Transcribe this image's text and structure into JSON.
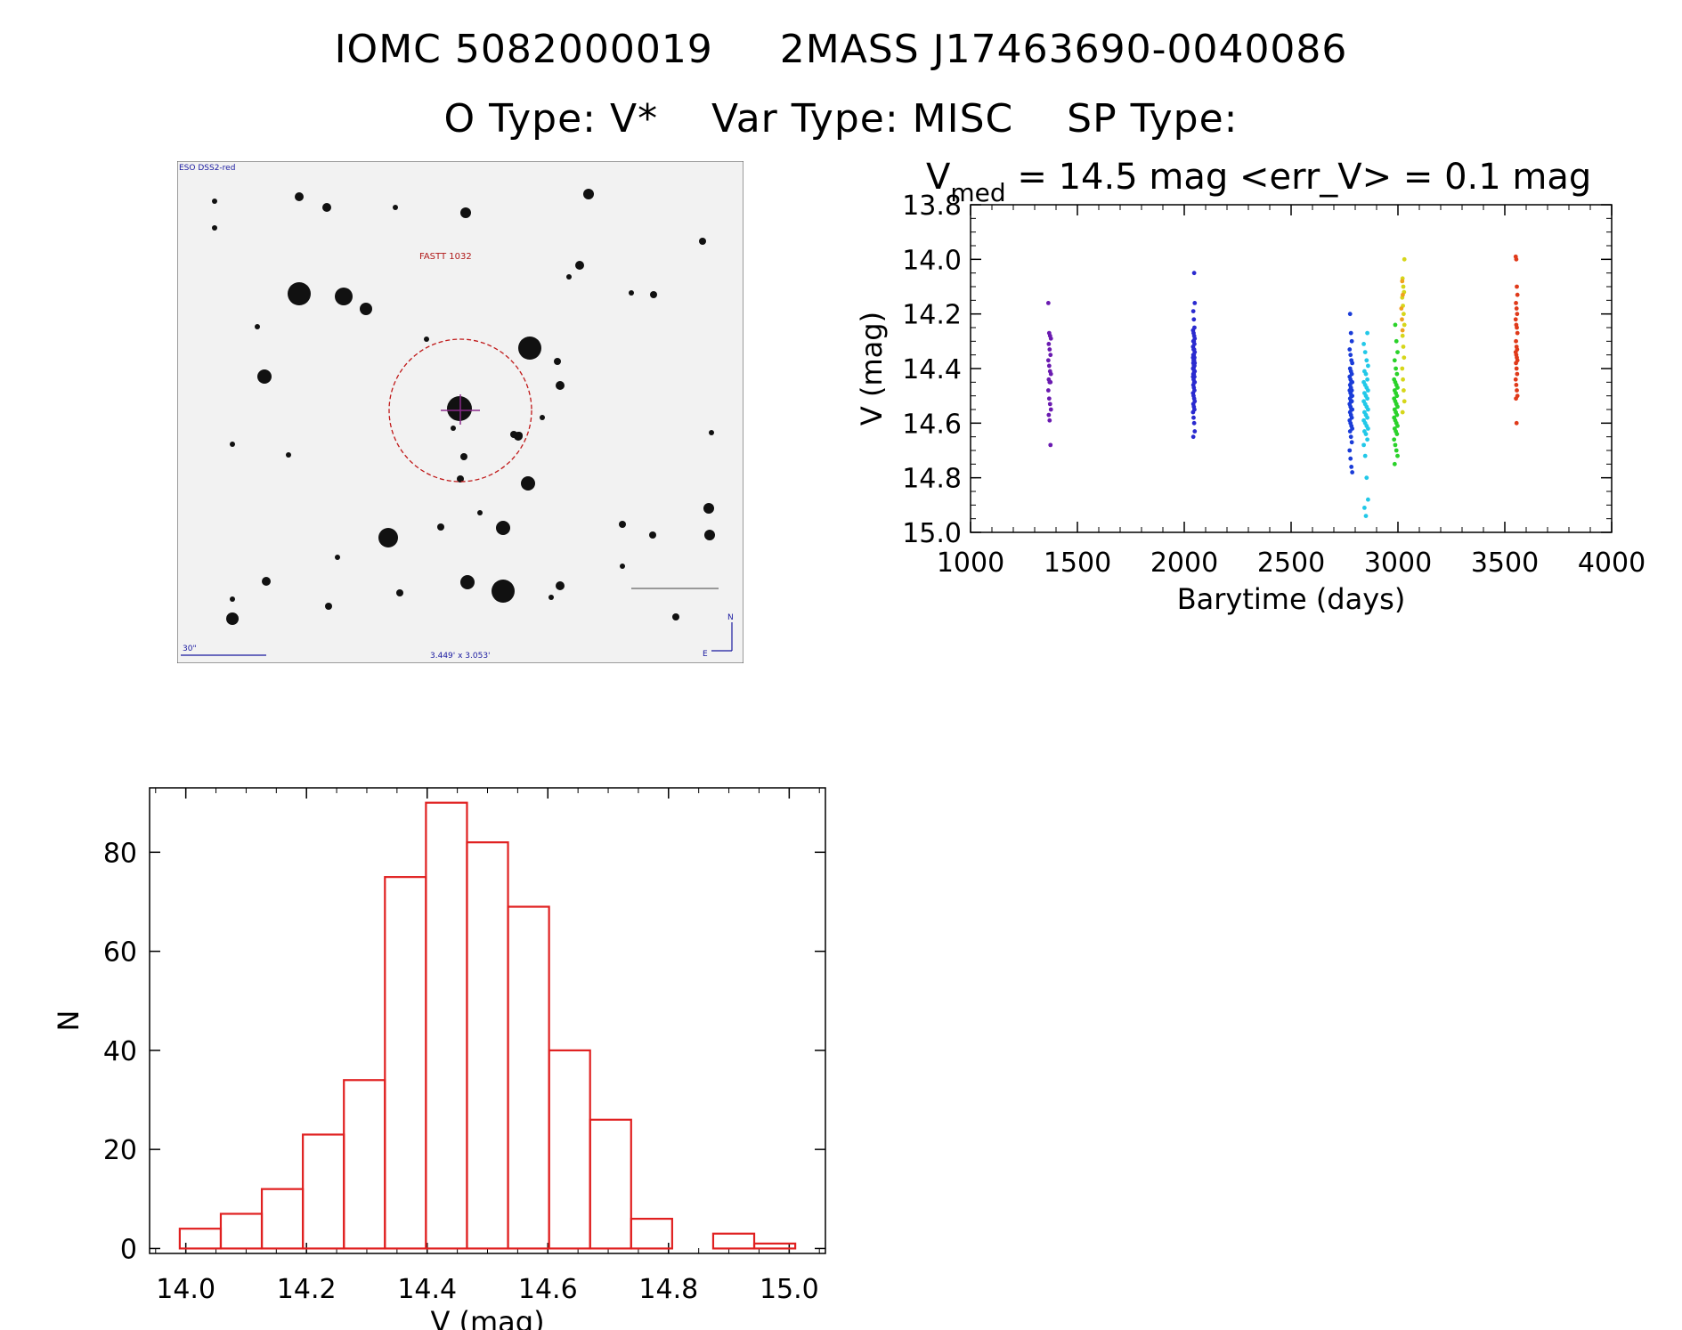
{
  "header": {
    "line1_id": "IOMC 5082000019",
    "line1_name": "2MASS J17463690-0040086",
    "line2_otype": "O Type: V*",
    "line2_vartype": "Var Type: MISC",
    "line2_sptype": "SP Type:"
  },
  "image_panel": {
    "survey_label": "ESO DSS2-red",
    "target_label": "FASTT 1032",
    "scale_label": "30\"",
    "fov_label": "3.449' x 3.053'",
    "north_label": "N",
    "east_label": "E"
  },
  "chart_data": [
    {
      "type": "scatter",
      "title_prefix": "V",
      "title_subscript": "med",
      "title_rest": " = 14.5 mag <err_V> = 0.1 mag",
      "xlabel": "Barytime (days)",
      "ylabel": "V (mag)",
      "xlim": [
        1000,
        4000
      ],
      "ylim": [
        15.0,
        13.8
      ],
      "y_inverted": true,
      "xticks": [
        "1000",
        "1500",
        "2000",
        "2500",
        "3000",
        "3500",
        "4000"
      ],
      "yticks": [
        "13.8",
        "14.0",
        "14.2",
        "14.4",
        "14.6",
        "14.8",
        "15.0"
      ],
      "series": [
        {
          "color": "#6a1ab0",
          "x_center": 1370,
          "x_spread": 6,
          "y": [
            14.16,
            14.27,
            14.28,
            14.29,
            14.31,
            14.33,
            14.35,
            14.37,
            14.39,
            14.41,
            14.42,
            14.44,
            14.45,
            14.45,
            14.48,
            14.51,
            14.53,
            14.55,
            14.57,
            14.59,
            14.68
          ]
        },
        {
          "color": "#2a2acf",
          "x_center": 2045,
          "x_spread": 4,
          "y": [
            14.05,
            14.16,
            14.19,
            14.22,
            14.25,
            14.26,
            14.27,
            14.28,
            14.29,
            14.3,
            14.3,
            14.31,
            14.32,
            14.33,
            14.33,
            14.34,
            14.35,
            14.35,
            14.36,
            14.36,
            14.37,
            14.37,
            14.38,
            14.38,
            14.39,
            14.39,
            14.4,
            14.4,
            14.41,
            14.41,
            14.42,
            14.42,
            14.43,
            14.43,
            14.44,
            14.45,
            14.45,
            14.46,
            14.47,
            14.48,
            14.49,
            14.5,
            14.51,
            14.52,
            14.53,
            14.54,
            14.55,
            14.56,
            14.58,
            14.6,
            14.63,
            14.65
          ]
        },
        {
          "color": "#1a3cd8",
          "x_center": 2780,
          "x_spread": 6,
          "y": [
            14.2,
            14.27,
            14.3,
            14.33,
            14.35,
            14.37,
            14.38,
            14.4,
            14.41,
            14.42,
            14.43,
            14.44,
            14.45,
            14.45,
            14.46,
            14.47,
            14.48,
            14.48,
            14.49,
            14.5,
            14.5,
            14.51,
            14.52,
            14.52,
            14.53,
            14.54,
            14.55,
            14.55,
            14.56,
            14.57,
            14.58,
            14.59,
            14.6,
            14.61,
            14.62,
            14.63,
            14.65,
            14.67,
            14.7,
            14.73,
            14.76,
            14.78
          ]
        },
        {
          "color": "#22c8e8",
          "x_center": 2850,
          "x_spread": 10,
          "y": [
            14.27,
            14.31,
            14.34,
            14.37,
            14.39,
            14.41,
            14.42,
            14.44,
            14.45,
            14.46,
            14.47,
            14.48,
            14.49,
            14.5,
            14.51,
            14.52,
            14.53,
            14.54,
            14.55,
            14.56,
            14.57,
            14.58,
            14.59,
            14.6,
            14.61,
            14.62,
            14.63,
            14.64,
            14.66,
            14.68,
            14.72,
            14.8,
            14.88,
            14.91,
            14.94
          ]
        },
        {
          "color": "#2ad22a",
          "x_center": 2990,
          "x_spread": 8,
          "y": [
            14.24,
            14.3,
            14.34,
            14.37,
            14.4,
            14.42,
            14.44,
            14.45,
            14.46,
            14.47,
            14.48,
            14.49,
            14.5,
            14.51,
            14.52,
            14.53,
            14.54,
            14.55,
            14.56,
            14.57,
            14.58,
            14.59,
            14.6,
            14.61,
            14.62,
            14.63,
            14.64,
            14.66,
            14.68,
            14.7,
            14.72,
            14.75
          ]
        },
        {
          "color": "#d6d61a",
          "x_center": 3025,
          "x_spread": 5,
          "y": [
            14.0,
            14.07,
            14.1,
            14.12,
            14.14,
            14.17,
            14.2,
            14.24,
            14.28,
            14.32,
            14.36,
            14.4,
            14.44,
            14.48,
            14.52,
            14.56
          ]
        },
        {
          "color": "#f0a020",
          "x_center": 3020,
          "x_spread": 4,
          "y": [
            14.08,
            14.13,
            14.18,
            14.22,
            14.26
          ]
        },
        {
          "color": "#e03a1a",
          "x_center": 3555,
          "x_spread": 4,
          "y": [
            13.99,
            14.0,
            14.1,
            14.13,
            14.16,
            14.18,
            14.2,
            14.22,
            14.24,
            14.25,
            14.27,
            14.3,
            14.32,
            14.33,
            14.34,
            14.35,
            14.36,
            14.37,
            14.38,
            14.4,
            14.42,
            14.44,
            14.46,
            14.48,
            14.5,
            14.51,
            14.6
          ]
        }
      ]
    },
    {
      "type": "bar",
      "subtype": "histogram",
      "xlabel": "V (mag)",
      "ylabel": "N",
      "xlim": [
        13.94,
        15.06
      ],
      "ylim": [
        -1,
        93
      ],
      "bar_color": "#e02020",
      "bin_edges": [
        13.99,
        14.058,
        14.126,
        14.194,
        14.262,
        14.33,
        14.398,
        14.466,
        14.534,
        14.602,
        14.67,
        14.738,
        14.806,
        14.874,
        14.942,
        15.01
      ],
      "values": [
        4,
        7,
        12,
        23,
        34,
        75,
        90,
        82,
        69,
        40,
        26,
        6,
        0,
        3,
        1
      ],
      "xticks": [
        "14.0",
        "14.2",
        "14.4",
        "14.6",
        "14.8",
        "15.0"
      ],
      "yticks": [
        "0",
        "20",
        "40",
        "60",
        "80"
      ]
    }
  ]
}
